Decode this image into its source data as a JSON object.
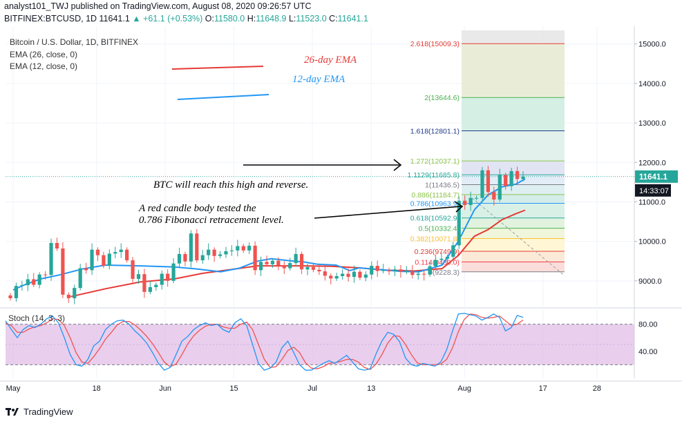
{
  "header": {
    "line1": "analyst101_TWJ published on TradingView.com, August 08, 2020 09:26:57 UTC",
    "symbol": "BITFINEX:BTCUSD, 1D",
    "last": "11641.1",
    "change": "▲ +61.1 (+0.53%)",
    "o_label": "O:",
    "o_val": "11580.0",
    "h_label": "H:",
    "h_val": "11648.9",
    "l_label": "L:",
    "l_val": "11523.0",
    "c_label": "C:",
    "c_val": "11641.1"
  },
  "legend": {
    "title": "Bitcoin / U.S. Dollar, 1D, BITFINEX",
    "ema26": "EMA (26, close, 0)",
    "ema12": "EMA (12, close, 0)",
    "stoch": "Stoch (14, 3, 3)"
  },
  "annotations": {
    "ema26_note": "26-day EMA",
    "ema12_note": "12-day EMA",
    "high_note": "BTC will reach this high and reverse.",
    "red_note_1": "A red candle body tested the",
    "red_note_2": "0.786 Fibonacci retracement level."
  },
  "footer": {
    "brand": "TradingView"
  },
  "colors": {
    "up": "#26a69a",
    "down": "#ef5350",
    "ema12": "#2196f3",
    "ema26": "#e53935",
    "stoch_k": "#2196f3",
    "stoch_d": "#ef5350",
    "stoch_bg": "#e1bee7",
    "price_tag": "#26a69a",
    "time_tag": "#131722"
  },
  "chart_data": {
    "type": "candlestick",
    "title": "Bitcoin / U.S. Dollar, 1D, BITFINEX",
    "x_ticks": [
      "May",
      "18",
      "Jun",
      "15",
      "Jul",
      "13",
      "Aug",
      "17",
      "28"
    ],
    "y_ticks": [
      "9000.0",
      "10000.0",
      "11000.0",
      "12000.0",
      "13000.0",
      "14000.0",
      "15000.0"
    ],
    "y_range": [
      8350,
      15450
    ],
    "date_range": [
      "2020-05-01",
      "2020-08-08"
    ],
    "price_tag": "11641.1",
    "time_tag": "14:33:07",
    "candles": [
      [
        8630,
        8560
      ],
      [
        8560,
        8870
      ],
      [
        8870,
        8890
      ],
      [
        8890,
        9040
      ],
      [
        9040,
        8900
      ],
      [
        8900,
        9160
      ],
      [
        9160,
        9150
      ],
      [
        9150,
        9960
      ],
      [
        9960,
        9820
      ],
      [
        9820,
        8650
      ],
      [
        8650,
        8560
      ],
      [
        8560,
        8820
      ],
      [
        8820,
        9320
      ],
      [
        9320,
        9270
      ],
      [
        9270,
        9790
      ],
      [
        9790,
        9650
      ],
      [
        9650,
        9380
      ],
      [
        9380,
        9690
      ],
      [
        9690,
        9730
      ],
      [
        9730,
        9790
      ],
      [
        9790,
        9520
      ],
      [
        9520,
        9050
      ],
      [
        9050,
        9170
      ],
      [
        9170,
        8720
      ],
      [
        8720,
        8840
      ],
      [
        8840,
        8900
      ],
      [
        8900,
        9180
      ],
      [
        9180,
        9000
      ],
      [
        9000,
        9440
      ],
      [
        9440,
        9680
      ],
      [
        9680,
        9490
      ],
      [
        9490,
        10200
      ],
      [
        10200,
        9520
      ],
      [
        9520,
        9650
      ],
      [
        9650,
        9790
      ],
      [
        9790,
        9630
      ],
      [
        9630,
        9670
      ],
      [
        9670,
        9750
      ],
      [
        9750,
        9770
      ],
      [
        9770,
        9880
      ],
      [
        9880,
        9770
      ],
      [
        9770,
        9890
      ],
      [
        9890,
        9270
      ],
      [
        9270,
        9480
      ],
      [
        9480,
        9420
      ],
      [
        9420,
        9510
      ],
      [
        9510,
        9390
      ],
      [
        9390,
        9320
      ],
      [
        9320,
        9450
      ],
      [
        9450,
        9680
      ],
      [
        9680,
        9290
      ],
      [
        9290,
        9350
      ],
      [
        9350,
        9280
      ],
      [
        9280,
        9240
      ],
      [
        9240,
        9130
      ],
      [
        9130,
        9060
      ],
      [
        9060,
        9120
      ],
      [
        9120,
        9180
      ],
      [
        9180,
        9100
      ],
      [
        9100,
        9230
      ],
      [
        9230,
        9080
      ],
      [
        9080,
        9160
      ],
      [
        9160,
        9380
      ],
      [
        9380,
        9250
      ],
      [
        9250,
        9270
      ],
      [
        9270,
        9240
      ],
      [
        9240,
        9290
      ],
      [
        9290,
        9230
      ],
      [
        9230,
        9240
      ],
      [
        9240,
        9150
      ],
      [
        9150,
        9180
      ],
      [
        9180,
        9160
      ],
      [
        9160,
        9370
      ],
      [
        9370,
        9530
      ],
      [
        9530,
        9560
      ],
      [
        9560,
        9610
      ],
      [
        9610,
        9900
      ],
      [
        9900,
        11030
      ],
      [
        11030,
        10920
      ],
      [
        10920,
        11100
      ],
      [
        11100,
        11100
      ],
      [
        11100,
        11800
      ],
      [
        11800,
        11250
      ],
      [
        11250,
        11060
      ],
      [
        11060,
        11680
      ],
      [
        11680,
        11400
      ],
      [
        11400,
        11780
      ],
      [
        11780,
        11580
      ],
      [
        11580,
        11641.1
      ]
    ],
    "ema12_path": [
      [
        8770,
        60
      ],
      [
        8900,
        65
      ],
      [
        9050,
        72
      ],
      [
        9150,
        80
      ],
      [
        9300,
        90
      ],
      [
        9400,
        100
      ],
      [
        9380,
        115
      ],
      [
        9350,
        130
      ],
      [
        9300,
        140
      ],
      [
        9230,
        150
      ],
      [
        9320,
        158
      ],
      [
        9500,
        166
      ],
      [
        9560,
        172
      ],
      [
        9510,
        180
      ],
      [
        9480,
        186
      ],
      [
        9420,
        192
      ],
      [
        9400,
        200
      ],
      [
        9260,
        206
      ],
      [
        9330,
        210
      ],
      [
        9300,
        216
      ],
      [
        9280,
        220
      ],
      [
        9240,
        228
      ],
      [
        9230,
        236
      ],
      [
        9400,
        246
      ],
      [
        10000,
        253
      ],
      [
        10800,
        260
      ],
      [
        11180,
        266
      ],
      [
        11380,
        272
      ],
      [
        11450,
        278
      ],
      [
        11580,
        282
      ]
    ],
    "ema26_path": [
      [
        8600,
        85
      ],
      [
        8800,
        100
      ],
      [
        8970,
        115
      ],
      [
        9050,
        130
      ],
      [
        9190,
        142
      ],
      [
        9300,
        156
      ],
      [
        9380,
        166
      ],
      [
        9380,
        176
      ],
      [
        9380,
        186
      ],
      [
        9370,
        198
      ],
      [
        9330,
        210
      ],
      [
        9270,
        222
      ],
      [
        9250,
        234
      ],
      [
        9310,
        246
      ],
      [
        9640,
        253
      ],
      [
        10130,
        260
      ],
      [
        10300,
        266
      ],
      [
        10550,
        272
      ],
      [
        10700,
        278
      ],
      [
        10790,
        282
      ]
    ],
    "fibonacci": {
      "levels": [
        {
          "label": "0",
          "value": 9228.3,
          "text": "0(9228.3)"
        },
        {
          "label": "0.114",
          "value": 9480.0,
          "text": "0.114(9480.0)"
        },
        {
          "label": "0.236",
          "value": 9749.9,
          "text": "0.236(9749.9)"
        },
        {
          "label": "0.382",
          "value": 10071.8,
          "text": "0.382(10071.8)"
        },
        {
          "label": "0.5",
          "value": 10332.4,
          "text": "0.5(10332.4)"
        },
        {
          "label": "0.618",
          "value": 10592.9,
          "text": "0.618(10592.9)"
        },
        {
          "label": "0.786",
          "value": 10963.9,
          "text": "0.786(10963.9)"
        },
        {
          "label": "0.886",
          "value": 11184.7,
          "text": "0.886(11184.7)"
        },
        {
          "label": "1",
          "value": 11436.5,
          "text": "1(11436.5)"
        },
        {
          "label": "1.1129",
          "value": 11685.8,
          "text": "1.1129(11685.8)"
        },
        {
          "label": "1.272",
          "value": 12037.1,
          "text": "1.272(12037.1)"
        },
        {
          "label": "1.618",
          "value": 12801.1,
          "text": "1.618(12801.1)"
        },
        {
          "label": "2",
          "value": 13644.6,
          "text": "2(13644.6)"
        },
        {
          "label": "2.618",
          "value": 15009.3,
          "text": "2.618(15009.3)"
        }
      ]
    },
    "stoch": {
      "title": "Stoch (14, 3, 3)",
      "y_ticks": [
        "40.00",
        "80.00"
      ],
      "y_range": [
        0,
        100
      ],
      "bands": [
        20,
        80
      ],
      "k": [
        85,
        72,
        60,
        72,
        78,
        75,
        80,
        88,
        92,
        82,
        60,
        35,
        20,
        18,
        28,
        48,
        55,
        72,
        80,
        85,
        86,
        80,
        70,
        62,
        52,
        38,
        22,
        12,
        16,
        35,
        55,
        62,
        72,
        78,
        82,
        78,
        80,
        72,
        68,
        82,
        88,
        78,
        50,
        22,
        12,
        15,
        24,
        45,
        55,
        38,
        20,
        12,
        12,
        17,
        22,
        26,
        22,
        28,
        34,
        24,
        14,
        12,
        14,
        36,
        55,
        68,
        65,
        54,
        30,
        20,
        18,
        22,
        20,
        18,
        24,
        42,
        70,
        95,
        96,
        94,
        92,
        86,
        90,
        95,
        90,
        70,
        75,
        93,
        90
      ],
      "d": [
        82,
        78,
        68,
        68,
        73,
        76,
        78,
        82,
        88,
        87,
        78,
        60,
        38,
        24,
        22,
        32,
        44,
        58,
        68,
        79,
        84,
        84,
        79,
        71,
        62,
        51,
        38,
        24,
        17,
        21,
        35,
        51,
        63,
        71,
        77,
        80,
        80,
        76,
        74,
        74,
        80,
        83,
        72,
        50,
        28,
        16,
        17,
        28,
        41,
        46,
        38,
        23,
        15,
        14,
        17,
        22,
        23,
        25,
        28,
        28,
        24,
        16,
        13,
        21,
        35,
        52,
        63,
        62,
        50,
        35,
        23,
        20,
        20,
        20,
        21,
        28,
        45,
        69,
        87,
        95,
        94,
        90,
        89,
        90,
        92,
        85,
        78,
        80,
        86
      ]
    }
  }
}
